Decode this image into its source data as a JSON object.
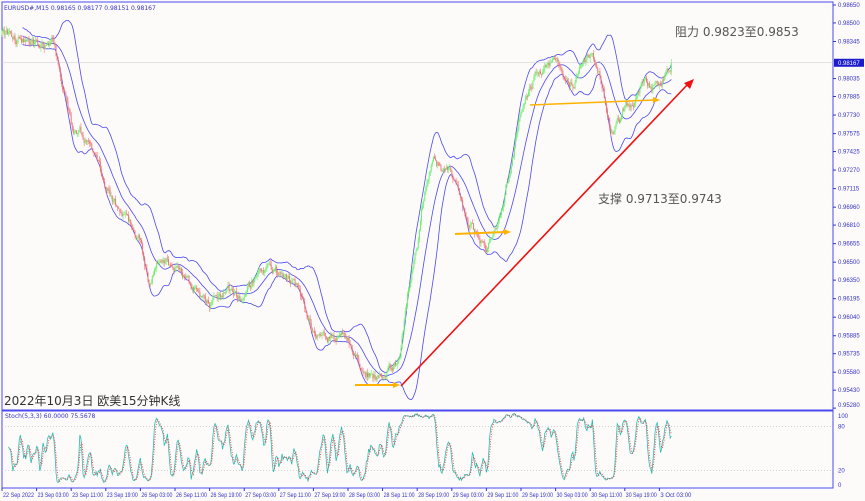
{
  "header": {
    "symbol_line": "EURUSD#,M15  0.98165 0.98177 0.98151 0.98167"
  },
  "caption": "2022年10月3日 欧美15分钟K线",
  "annotations": {
    "resistance": "阻力 0.9823至0.9853",
    "support": "支撑 0.9713至0.9743"
  },
  "colors": {
    "background": "#fdfafa",
    "bull_candle": "#6cf06c",
    "bear_candle": "#f07878",
    "bands": "#4a4af0",
    "axis": "#3535c8",
    "trendline": "#ee1111",
    "level_lines": "#ffb300",
    "stoch_main": "#2bbcb0",
    "stoch_signal": "#ee3030",
    "price_tag": "#1c1ccc"
  },
  "chart_data": [
    {
      "type": "candlestick",
      "symbol": "EURUSD#",
      "timeframe": "M15",
      "indicator": "Bollinger Bands",
      "current_price": "0.98167",
      "y_ticks": [
        "0.98650",
        "0.98500",
        "0.98345",
        "0.98035",
        "0.97885",
        "0.97730",
        "0.97575",
        "0.97425",
        "0.97270",
        "0.97115",
        "0.96960",
        "0.96810",
        "0.96655",
        "0.96500",
        "0.96350",
        "0.96195",
        "0.96040",
        "0.95885",
        "0.95735",
        "0.95580",
        "0.95430",
        "0.95280"
      ],
      "ylim": [
        0.9528,
        0.9865
      ],
      "x_ticks": [
        "22 Sep 2022",
        "23 Sep 03:00",
        "23 Sep 11:00",
        "23 Sep 19:00",
        "26 Sep 03:00",
        "26 Sep 11:00",
        "26 Sep 19:00",
        "27 Sep 03:00",
        "27 Sep 11:00",
        "27 Sep 19:00",
        "28 Sep 03:00",
        "28 Sep 11:00",
        "28 Sep 19:00",
        "29 Sep 03:00",
        "29 Sep 11:00",
        "29 Sep 19:00",
        "30 Sep 03:00",
        "30 Sep 11:00",
        "30 Sep 19:00",
        "3 Oct 03:00"
      ],
      "price_path": [
        [
          "22 Sep 19:00",
          0.98399
        ],
        [
          "22 Sep 23:00",
          0.98357
        ],
        [
          "23 Sep 03:00",
          0.98332
        ],
        [
          "23 Sep 07:00",
          0.98316
        ],
        [
          "23 Sep 11:00",
          0.97647
        ],
        [
          "23 Sep 15:00",
          0.97521
        ],
        [
          "23 Sep 19:00",
          0.97103
        ],
        [
          "23 Sep 23:00",
          0.96894
        ],
        [
          "26 Sep 03:00",
          0.96685
        ],
        [
          "26 Sep 05:00",
          0.96309
        ],
        [
          "26 Sep 07:00",
          0.96476
        ],
        [
          "26 Sep 11:00",
          0.96435
        ],
        [
          "26 Sep 15:00",
          0.96267
        ],
        [
          "26 Sep 19:00",
          0.96142
        ],
        [
          "26 Sep 23:00",
          0.96267
        ],
        [
          "27 Sep 03:00",
          0.96183
        ],
        [
          "27 Sep 07:00",
          0.96476
        ],
        [
          "27 Sep 11:00",
          0.96393
        ],
        [
          "27 Sep 15:00",
          0.96309
        ],
        [
          "27 Sep 19:00",
          0.95933
        ],
        [
          "27 Sep 23:00",
          0.95891
        ],
        [
          "28 Sep 03:00",
          0.9585
        ],
        [
          "28 Sep 07:00",
          0.95599
        ],
        [
          "28 Sep 11:00",
          0.95515
        ],
        [
          "28 Sep 15:00",
          0.95682
        ],
        [
          "28 Sep 17:00",
          0.96267
        ],
        [
          "28 Sep 19:00",
          0.96685
        ],
        [
          "28 Sep 21:00",
          0.97187
        ],
        [
          "28 Sep 23:00",
          0.97354
        ],
        [
          "29 Sep 03:00",
          0.97229
        ],
        [
          "29 Sep 07:00",
          0.96811
        ],
        [
          "29 Sep 11:00",
          0.96602
        ],
        [
          "29 Sep 14:00",
          0.96894
        ],
        [
          "29 Sep 17:00",
          0.97354
        ],
        [
          "29 Sep 19:00",
          0.97772
        ],
        [
          "29 Sep 23:00",
          0.98107
        ],
        [
          "30 Sep 03:00",
          0.98148
        ],
        [
          "30 Sep 07:00",
          0.98023
        ],
        [
          "30 Sep 11:00",
          0.98232
        ],
        [
          "30 Sep 13:00",
          0.98107
        ],
        [
          "30 Sep 16:00",
          0.97605
        ],
        [
          "30 Sep 19:00",
          0.97772
        ],
        [
          "30 Sep 23:00",
          0.97981
        ],
        [
          "3 Oct 03:00",
          0.97981
        ],
        [
          "3 Oct 05:45",
          0.98167
        ]
      ]
    },
    {
      "type": "line",
      "indicator_label": "Stoch(5,3,3) 60.0000 75.5678",
      "y_ticks": [
        "100",
        "80",
        "20",
        "0"
      ],
      "ylim": [
        0,
        100
      ],
      "levels": [
        80,
        20
      ]
    }
  ]
}
